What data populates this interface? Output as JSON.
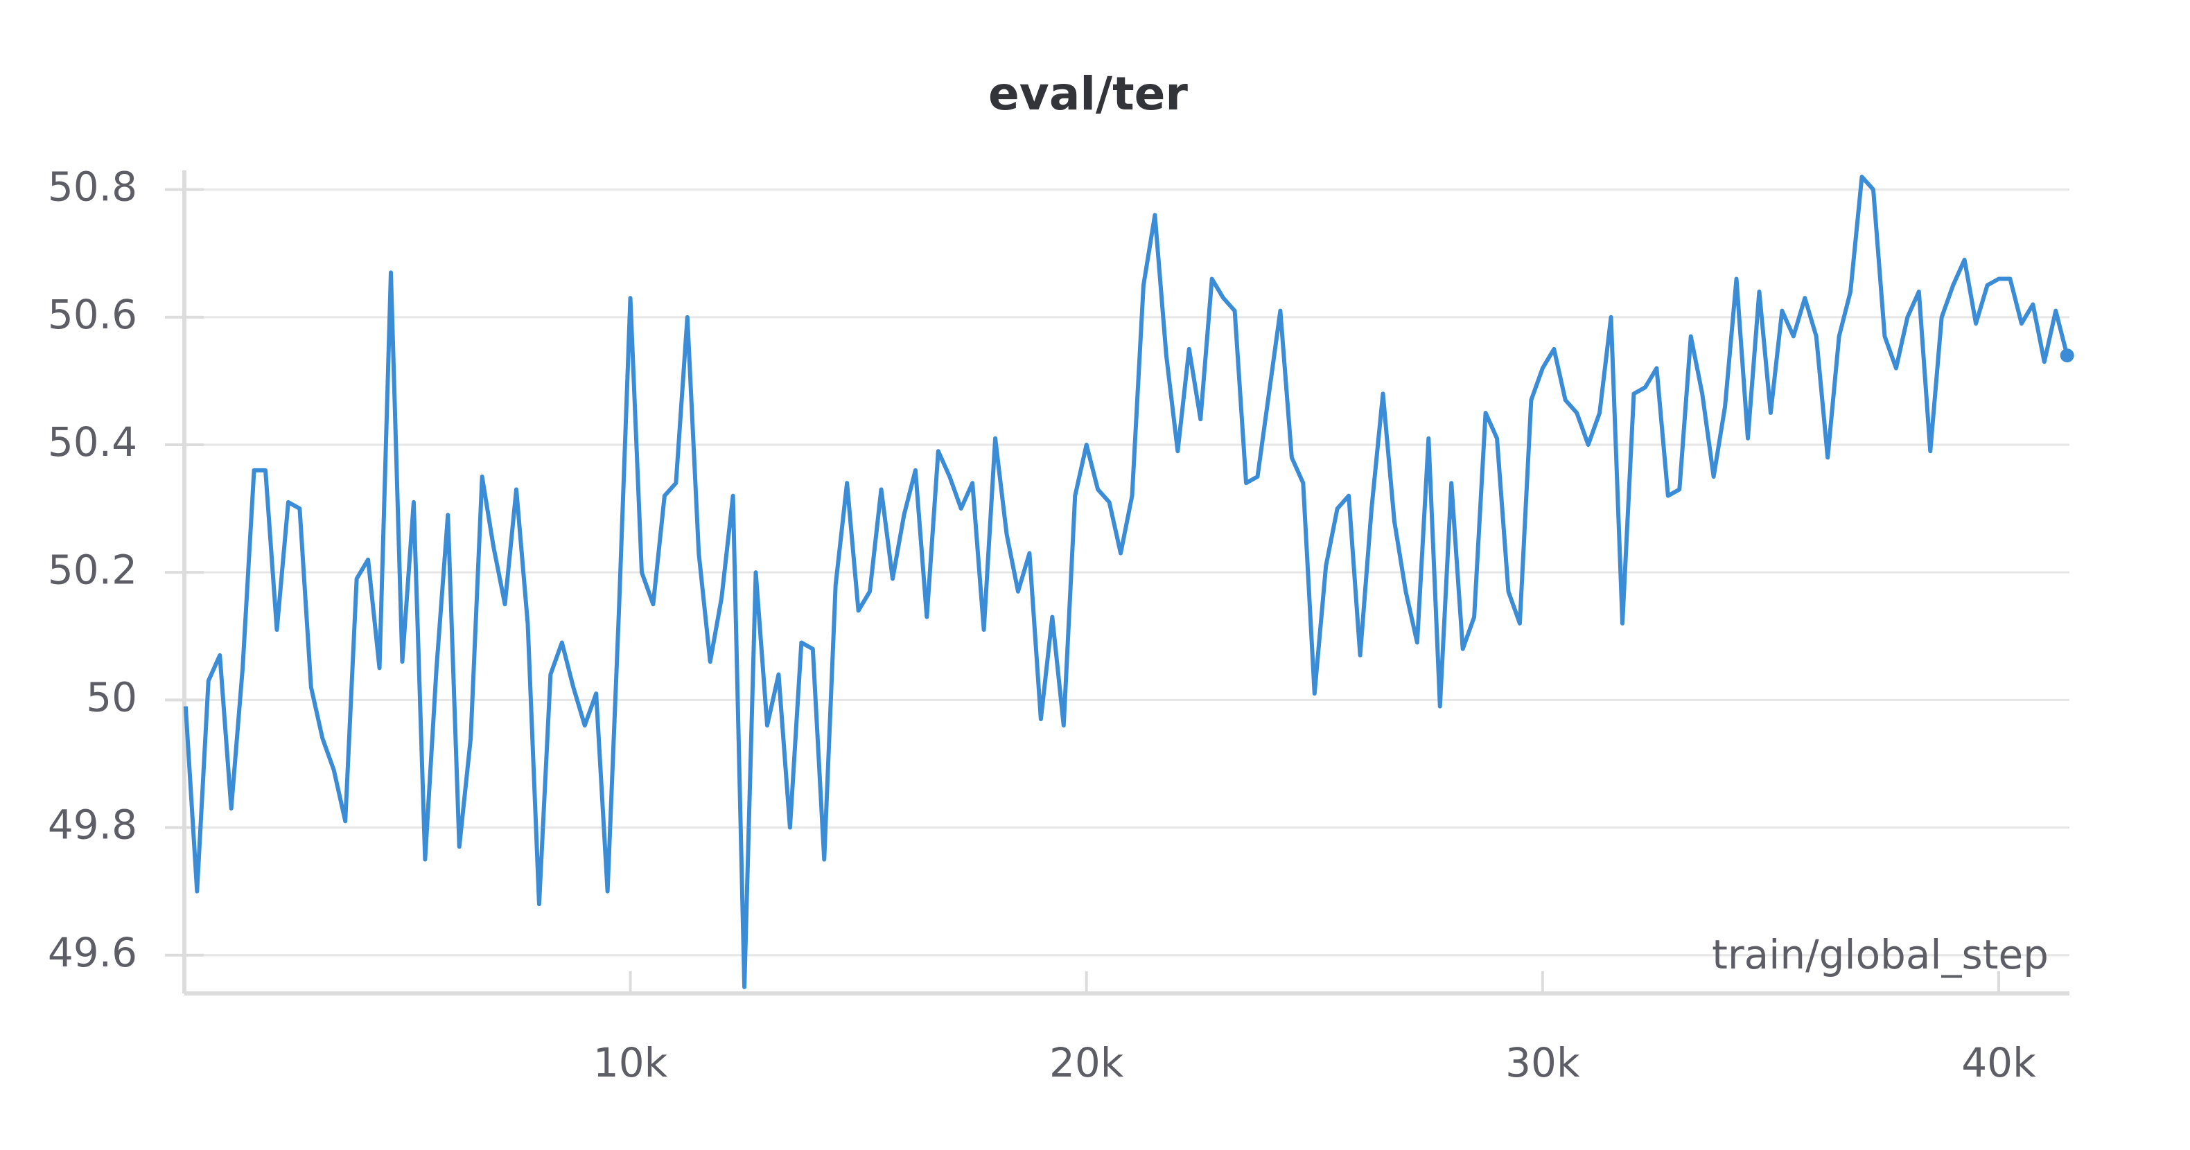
{
  "chart_data": {
    "type": "line",
    "title": "eval/ter",
    "x_label": "train/global_step",
    "x": [
      250,
      500,
      750,
      1000,
      1250,
      1500,
      1750,
      2000,
      2250,
      2500,
      2750,
      3000,
      3250,
      3500,
      3750,
      4000,
      4250,
      4500,
      4750,
      5000,
      5250,
      5500,
      5750,
      6000,
      6250,
      6500,
      6750,
      7000,
      7250,
      7500,
      7750,
      8000,
      8250,
      8500,
      8750,
      9000,
      9250,
      9500,
      9750,
      10000,
      10250,
      10500,
      10750,
      11000,
      11250,
      11500,
      11750,
      12000,
      12250,
      12500,
      12750,
      13000,
      13250,
      13500,
      13750,
      14000,
      14250,
      14500,
      14750,
      15000,
      15250,
      15500,
      15750,
      16000,
      16250,
      16500,
      16750,
      17000,
      17250,
      17500,
      17750,
      18000,
      18250,
      18500,
      18750,
      19000,
      19250,
      19500,
      19750,
      20000,
      20250,
      20500,
      20750,
      21000,
      21250,
      21500,
      21750,
      22000,
      22250,
      22500,
      22750,
      23000,
      23250,
      23500,
      23750,
      24000,
      24250,
      24500,
      24750,
      25000,
      25250,
      25500,
      25750,
      26000,
      26250,
      26500,
      26750,
      27000,
      27250,
      27500,
      27750,
      28000,
      28250,
      28500,
      28750,
      29000,
      29250,
      29500,
      29750,
      30000,
      30250,
      30500,
      30750,
      31000,
      31250,
      31500,
      31750,
      32000,
      32250,
      32500,
      32750,
      33000,
      33250,
      33500,
      33750,
      34000,
      34250,
      34500,
      34750,
      35000,
      35250,
      35500,
      35750,
      36000,
      36250,
      36500,
      36750,
      37000,
      37250,
      37500,
      37750,
      38000,
      38250,
      38500,
      38750,
      39000,
      39250,
      39500,
      39750,
      40000,
      40250,
      40500,
      40750,
      41000,
      41250,
      41500
    ],
    "series": [
      {
        "name": "eval/ter",
        "color": "#3a8cd7",
        "values": [
          49.99,
          49.7,
          50.03,
          50.07,
          49.83,
          50.05,
          50.36,
          50.36,
          50.11,
          50.31,
          50.3,
          50.02,
          49.94,
          49.89,
          49.81,
          50.19,
          50.22,
          50.05,
          50.67,
          50.06,
          50.31,
          49.75,
          50.05,
          50.29,
          49.77,
          49.94,
          50.35,
          50.24,
          50.15,
          50.33,
          50.12,
          49.68,
          50.04,
          50.09,
          50.02,
          49.96,
          50.01,
          49.7,
          50.14,
          50.63,
          50.2,
          50.15,
          50.32,
          50.34,
          50.6,
          50.23,
          50.06,
          50.16,
          50.32,
          49.55,
          50.2,
          49.96,
          50.04,
          49.8,
          50.09,
          50.08,
          49.75,
          50.18,
          50.34,
          50.14,
          50.17,
          50.33,
          50.19,
          50.29,
          50.36,
          50.13,
          50.39,
          50.35,
          50.3,
          50.34,
          50.11,
          50.41,
          50.26,
          50.17,
          50.23,
          49.97,
          50.13,
          49.96,
          50.32,
          50.4,
          50.33,
          50.31,
          50.23,
          50.32,
          50.65,
          50.76,
          50.54,
          50.39,
          50.55,
          50.44,
          50.66,
          50.63,
          50.61,
          50.34,
          50.35,
          50.48,
          50.61,
          50.38,
          50.34,
          50.01,
          50.21,
          50.3,
          50.32,
          50.07,
          50.3,
          50.48,
          50.28,
          50.17,
          50.09,
          50.41,
          49.99,
          50.34,
          50.08,
          50.13,
          50.45,
          50.41,
          50.17,
          50.12,
          50.47,
          50.52,
          50.55,
          50.47,
          50.45,
          50.4,
          50.45,
          50.6,
          50.12,
          50.48,
          50.49,
          50.52,
          50.32,
          50.33,
          50.57,
          50.48,
          50.35,
          50.46,
          50.66,
          50.41,
          50.64,
          50.45,
          50.61,
          50.57,
          50.63,
          50.57,
          50.38,
          50.57,
          50.64,
          50.82,
          50.8,
          50.57,
          50.52,
          50.6,
          50.64,
          50.39,
          50.6,
          50.65,
          50.69,
          50.59,
          50.65,
          50.66,
          50.66,
          50.59,
          50.62,
          50.53,
          50.61,
          50.54
        ]
      }
    ],
    "xlim": [
      222,
      41550
    ],
    "xticks": [
      {
        "value": 10000,
        "label": "10k"
      },
      {
        "value": 20000,
        "label": "20k"
      },
      {
        "value": 30000,
        "label": "30k"
      },
      {
        "value": 40000,
        "label": "40k"
      }
    ],
    "ylim": [
      49.54,
      50.83
    ],
    "yticks": [
      49.6,
      49.8,
      50,
      50.2,
      50.4,
      50.6,
      50.8
    ],
    "grid": true
  }
}
